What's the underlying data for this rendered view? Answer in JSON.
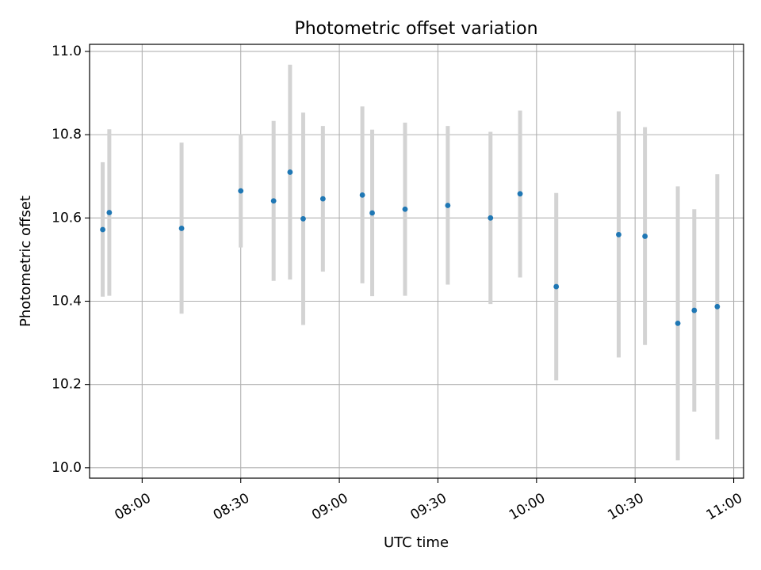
{
  "chart_data": {
    "type": "scatter",
    "title": "Photometric offset variation",
    "xlabel": "UTC time",
    "ylabel": "Photometric offset",
    "x_axis_type": "time",
    "xlim": [
      "07:44",
      "11:03"
    ],
    "ylim": [
      9.975,
      11.017
    ],
    "x_ticks": [
      "08:00",
      "08:30",
      "09:00",
      "09:30",
      "10:00",
      "10:30",
      "11:00"
    ],
    "y_ticks": [
      "10.0",
      "10.2",
      "10.4",
      "10.6",
      "10.8",
      "11.0"
    ],
    "grid": true,
    "error_bar_color": "#d3d3d3",
    "marker_color": "#1f77b4",
    "points": [
      {
        "time": "07:48",
        "value": 10.572,
        "low": 10.411,
        "high": 10.734
      },
      {
        "time": "07:50",
        "value": 10.613,
        "low": 10.413,
        "high": 10.813
      },
      {
        "time": "08:12",
        "value": 10.575,
        "low": 10.37,
        "high": 10.781
      },
      {
        "time": "08:30",
        "value": 10.665,
        "low": 10.529,
        "high": 10.801
      },
      {
        "time": "08:40",
        "value": 10.641,
        "low": 10.449,
        "high": 10.833
      },
      {
        "time": "08:45",
        "value": 10.71,
        "low": 10.452,
        "high": 10.968
      },
      {
        "time": "08:49",
        "value": 10.598,
        "low": 10.343,
        "high": 10.853
      },
      {
        "time": "08:55",
        "value": 10.646,
        "low": 10.471,
        "high": 10.821
      },
      {
        "time": "09:07",
        "value": 10.655,
        "low": 10.443,
        "high": 10.868
      },
      {
        "time": "09:10",
        "value": 10.612,
        "low": 10.412,
        "high": 10.812
      },
      {
        "time": "09:20",
        "value": 10.621,
        "low": 10.413,
        "high": 10.829
      },
      {
        "time": "09:33",
        "value": 10.63,
        "low": 10.44,
        "high": 10.821
      },
      {
        "time": "09:46",
        "value": 10.6,
        "low": 10.393,
        "high": 10.807
      },
      {
        "time": "09:55",
        "value": 10.658,
        "low": 10.457,
        "high": 10.858
      },
      {
        "time": "10:06",
        "value": 10.435,
        "low": 10.21,
        "high": 10.66
      },
      {
        "time": "10:25",
        "value": 10.56,
        "low": 10.265,
        "high": 10.856
      },
      {
        "time": "10:33",
        "value": 10.556,
        "low": 10.295,
        "high": 10.818
      },
      {
        "time": "10:43",
        "value": 10.347,
        "low": 10.018,
        "high": 10.676
      },
      {
        "time": "10:48",
        "value": 10.378,
        "low": 10.135,
        "high": 10.621
      },
      {
        "time": "10:55",
        "value": 10.387,
        "low": 10.068,
        "high": 10.705
      }
    ]
  }
}
